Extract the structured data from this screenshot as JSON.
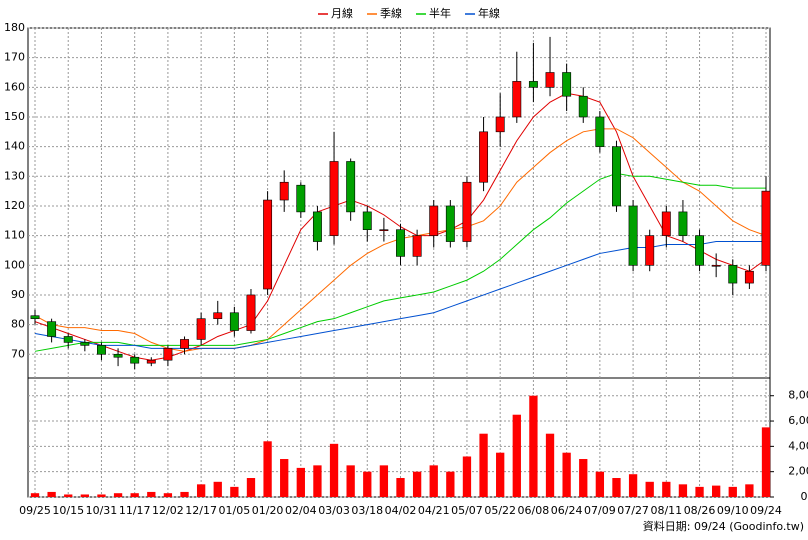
{
  "chart_data": {
    "type": "candlestick",
    "legend": "top",
    "grid": true,
    "up_color": "#ff0000",
    "down_color": "#00a000",
    "categories": [
      "09/25",
      null,
      "10/15",
      null,
      "10/31",
      null,
      "11/17",
      null,
      "12/02",
      null,
      "12/17",
      null,
      "01/05",
      null,
      "01/20",
      null,
      "02/04",
      null,
      "03/03",
      null,
      "03/18",
      null,
      "04/02",
      null,
      "04/21",
      null,
      "05/07",
      null,
      "05/22",
      null,
      "06/08",
      null,
      "06/24",
      null,
      "07/09",
      null,
      "07/27",
      null,
      "08/11",
      null,
      "08/26",
      null,
      "09/10",
      null,
      "09/24"
    ],
    "ohlc": {
      "open": [
        83,
        81,
        76,
        74,
        73,
        70,
        69,
        67,
        68,
        72,
        75,
        82,
        84,
        78,
        92,
        122,
        127,
        118,
        110,
        135,
        118,
        112,
        112,
        103,
        110,
        120,
        108,
        128,
        145,
        150,
        162,
        160,
        165,
        157,
        150,
        140,
        120,
        100,
        110,
        118,
        110,
        100,
        100,
        94,
        100
      ],
      "high": [
        85,
        82,
        77,
        75,
        74,
        72,
        70,
        69,
        73,
        76,
        84,
        88,
        86,
        92,
        125,
        132,
        128,
        120,
        145,
        136,
        120,
        116,
        114,
        112,
        122,
        122,
        130,
        150,
        158,
        172,
        175,
        177,
        168,
        160,
        152,
        142,
        122,
        112,
        120,
        122,
        112,
        104,
        102,
        100,
        130
      ],
      "low": [
        80,
        74,
        72,
        71,
        68,
        66,
        65,
        66,
        66,
        70,
        73,
        80,
        76,
        77,
        90,
        118,
        116,
        105,
        107,
        115,
        108,
        108,
        100,
        100,
        106,
        106,
        106,
        125,
        140,
        148,
        155,
        157,
        152,
        148,
        138,
        118,
        98,
        98,
        106,
        108,
        98,
        96,
        90,
        92,
        98
      ],
      "close": [
        82,
        76,
        74,
        73,
        70,
        69,
        67,
        68,
        72,
        75,
        82,
        84,
        78,
        90,
        122,
        128,
        118,
        108,
        135,
        118,
        112,
        112,
        103,
        110,
        120,
        108,
        128,
        145,
        150,
        162,
        160,
        165,
        157,
        150,
        140,
        120,
        100,
        110,
        118,
        110,
        100,
        100,
        94,
        98,
        125
      ]
    },
    "series": [
      {
        "name": "月線",
        "color": "#e00000",
        "values": [
          81,
          79,
          77,
          75,
          73,
          71,
          69,
          68,
          69,
          71,
          73,
          76,
          78,
          80,
          88,
          100,
          112,
          118,
          120,
          122,
          120,
          117,
          113,
          110,
          110,
          112,
          115,
          122,
          132,
          142,
          150,
          155,
          158,
          157,
          155,
          145,
          130,
          120,
          110,
          108,
          105,
          102,
          100,
          98,
          102
        ]
      },
      {
        "name": "季線",
        "color": "#ff6a00",
        "values": [
          83,
          80,
          79,
          79,
          78,
          78,
          77,
          74,
          72,
          71,
          72,
          72,
          72,
          73,
          75,
          80,
          85,
          90,
          95,
          100,
          104,
          107,
          109,
          110,
          111,
          112,
          113,
          115,
          120,
          128,
          133,
          138,
          142,
          145,
          146,
          146,
          143,
          138,
          133,
          128,
          125,
          120,
          115,
          112,
          110
        ]
      },
      {
        "name": "半年",
        "color": "#00cc00",
        "values": [
          71,
          72,
          73,
          74,
          74,
          74,
          73,
          73,
          73,
          73,
          73,
          73,
          73,
          74,
          75,
          77,
          79,
          81,
          82,
          84,
          86,
          88,
          89,
          90,
          91,
          93,
          95,
          98,
          102,
          107,
          112,
          116,
          121,
          125,
          129,
          131,
          130,
          130,
          129,
          128,
          127,
          127,
          126,
          126,
          126
        ]
      },
      {
        "name": "年線",
        "color": "#0050d0",
        "values": [
          77,
          76,
          75,
          74,
          73,
          73,
          73,
          72,
          72,
          72,
          72,
          72,
          72,
          73,
          74,
          75,
          76,
          77,
          78,
          79,
          80,
          81,
          82,
          83,
          84,
          86,
          88,
          90,
          92,
          94,
          96,
          98,
          100,
          102,
          104,
          105,
          106,
          106,
          107,
          107,
          107,
          108,
          108,
          108,
          108
        ]
      }
    ],
    "volume": {
      "axis": "y2",
      "color": "#ff0000",
      "values": [
        300,
        400,
        200,
        200,
        200,
        300,
        300,
        400,
        300,
        400,
        1000,
        1200,
        800,
        1500,
        4400,
        3000,
        2300,
        2500,
        4200,
        2500,
        2000,
        2500,
        1500,
        2000,
        2500,
        2000,
        3200,
        5000,
        3500,
        6500,
        8000,
        5000,
        3500,
        3000,
        2000,
        1500,
        1800,
        1200,
        1200,
        1000,
        800,
        900,
        800,
        1000,
        5500
      ]
    },
    "ylim": [
      62,
      180
    ],
    "yticks": [
      70,
      80,
      90,
      100,
      110,
      120,
      130,
      140,
      150,
      160,
      170,
      180
    ],
    "y2lim": [
      0,
      9400
    ],
    "y2ticks": [
      0,
      {
        "value": 2000,
        "label": "2,000"
      },
      {
        "value": 4000,
        "label": "4,000"
      },
      {
        "value": 6000,
        "label": "6,000"
      },
      {
        "value": 8000,
        "label": "8,000"
      }
    ],
    "footnote": "資料日期: 09/24 (Goodinfo.tw)"
  }
}
